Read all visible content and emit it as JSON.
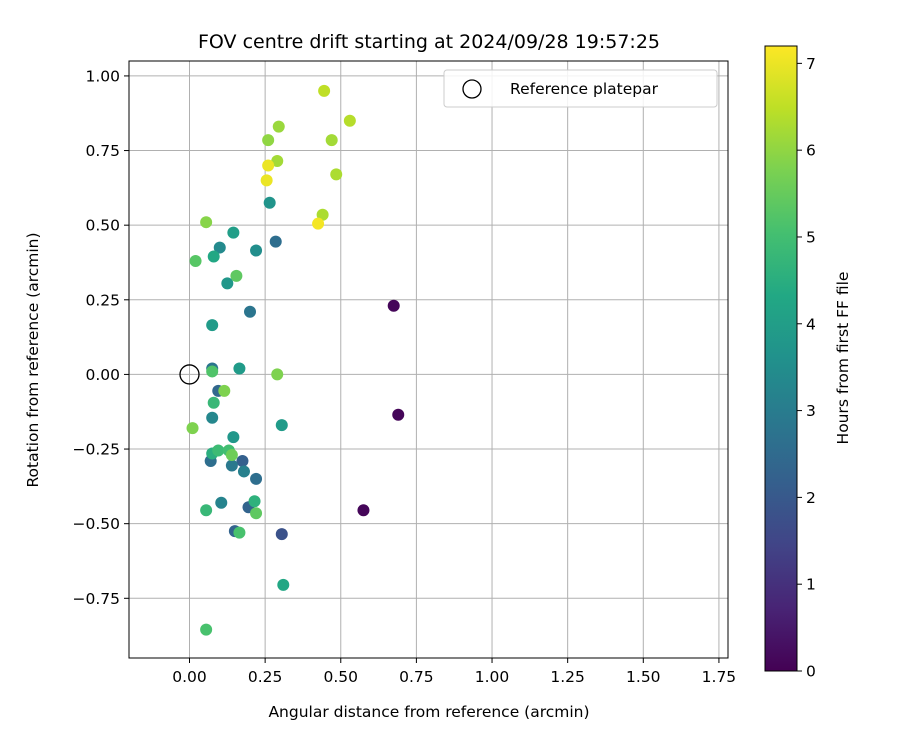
{
  "chart_data": {
    "type": "scatter",
    "title": "FOV centre drift starting at 2024/09/28 19:57:25",
    "xlabel": "Angular distance from reference (arcmin)",
    "ylabel": "Rotation from reference (arcmin)",
    "xlim": [
      -0.2,
      1.78
    ],
    "ylim": [
      -0.95,
      1.05
    ],
    "xticks": [
      0.0,
      0.25,
      0.5,
      0.75,
      1.0,
      1.25,
      1.5,
      1.75
    ],
    "xtick_labels": [
      "0.00",
      "0.25",
      "0.50",
      "0.75",
      "1.00",
      "1.25",
      "1.50",
      "1.75"
    ],
    "yticks": [
      -0.75,
      -0.5,
      -0.25,
      0.0,
      0.25,
      0.5,
      0.75,
      1.0
    ],
    "ytick_labels": [
      "−0.75",
      "−0.50",
      "−0.25",
      "0.00",
      "0.25",
      "0.50",
      "0.75",
      "1.00"
    ],
    "grid": true,
    "colormap": "viridis",
    "colorbar": {
      "label": "Hours from first FF file",
      "range": [
        0,
        7.2
      ],
      "ticks": [
        0,
        1,
        2,
        3,
        4,
        5,
        6,
        7
      ],
      "tick_labels": [
        "0",
        "1",
        "2",
        "3",
        "4",
        "5",
        "6",
        "7"
      ]
    },
    "legend": {
      "position": "top-right",
      "entries": [
        "Reference platepar"
      ]
    },
    "reference": {
      "x": 0.0,
      "y": 0.0,
      "name": "Reference platepar"
    },
    "series": [
      {
        "name": "",
        "points": [
          {
            "x": 0.675,
            "y": 0.23,
            "c": 0.1
          },
          {
            "x": 0.69,
            "y": -0.135,
            "c": 0.1
          },
          {
            "x": 0.575,
            "y": -0.455,
            "c": 0.1
          },
          {
            "x": 0.305,
            "y": -0.535,
            "c": 1.8
          },
          {
            "x": 0.15,
            "y": -0.525,
            "c": 2.3
          },
          {
            "x": 0.195,
            "y": -0.445,
            "c": 2.3
          },
          {
            "x": 0.175,
            "y": -0.29,
            "c": 2.2
          },
          {
            "x": 0.07,
            "y": -0.29,
            "c": 2.6
          },
          {
            "x": 0.095,
            "y": -0.055,
            "c": 2.4
          },
          {
            "x": 0.22,
            "y": -0.35,
            "c": 2.6
          },
          {
            "x": 0.285,
            "y": 0.445,
            "c": 2.6
          },
          {
            "x": 0.2,
            "y": 0.21,
            "c": 2.8
          },
          {
            "x": 0.075,
            "y": 0.02,
            "c": 2.8
          },
          {
            "x": 0.14,
            "y": -0.305,
            "c": 2.9
          },
          {
            "x": 0.18,
            "y": -0.325,
            "c": 3.1
          },
          {
            "x": 0.105,
            "y": -0.43,
            "c": 3.2
          },
          {
            "x": 0.075,
            "y": -0.145,
            "c": 3.3
          },
          {
            "x": 0.1,
            "y": 0.425,
            "c": 3.4
          },
          {
            "x": 0.22,
            "y": 0.415,
            "c": 3.5
          },
          {
            "x": 0.265,
            "y": 0.575,
            "c": 3.7
          },
          {
            "x": 0.125,
            "y": 0.305,
            "c": 3.8
          },
          {
            "x": 0.145,
            "y": -0.21,
            "c": 3.8
          },
          {
            "x": 0.075,
            "y": 0.165,
            "c": 3.9
          },
          {
            "x": 0.165,
            "y": 0.02,
            "c": 3.9
          },
          {
            "x": 0.305,
            "y": -0.17,
            "c": 3.9
          },
          {
            "x": 0.145,
            "y": 0.475,
            "c": 4.0
          },
          {
            "x": 0.08,
            "y": 0.395,
            "c": 4.3
          },
          {
            "x": 0.31,
            "y": -0.705,
            "c": 4.3
          },
          {
            "x": 0.075,
            "y": -0.265,
            "c": 4.5
          },
          {
            "x": 0.215,
            "y": -0.425,
            "c": 4.6
          },
          {
            "x": 0.08,
            "y": -0.095,
            "c": 4.8
          },
          {
            "x": 0.055,
            "y": -0.455,
            "c": 4.8
          },
          {
            "x": 0.095,
            "y": -0.255,
            "c": 4.9
          },
          {
            "x": 0.13,
            "y": -0.255,
            "c": 5.0
          },
          {
            "x": 0.055,
            "y": -0.855,
            "c": 5.1
          },
          {
            "x": 0.165,
            "y": -0.53,
            "c": 5.1
          },
          {
            "x": 0.075,
            "y": 0.01,
            "c": 5.2
          },
          {
            "x": 0.02,
            "y": 0.38,
            "c": 5.3
          },
          {
            "x": 0.155,
            "y": 0.33,
            "c": 5.4
          },
          {
            "x": 0.22,
            "y": -0.465,
            "c": 5.4
          },
          {
            "x": 0.14,
            "y": -0.27,
            "c": 5.6
          },
          {
            "x": 0.115,
            "y": -0.055,
            "c": 5.8
          },
          {
            "x": 0.29,
            "y": 0.0,
            "c": 5.8
          },
          {
            "x": 0.01,
            "y": -0.18,
            "c": 5.8
          },
          {
            "x": 0.055,
            "y": 0.51,
            "c": 5.9
          },
          {
            "x": 0.26,
            "y": 0.785,
            "c": 6.0
          },
          {
            "x": 0.295,
            "y": 0.83,
            "c": 6.1
          },
          {
            "x": 0.29,
            "y": 0.715,
            "c": 6.2
          },
          {
            "x": 0.47,
            "y": 0.785,
            "c": 6.2
          },
          {
            "x": 0.485,
            "y": 0.67,
            "c": 6.3
          },
          {
            "x": 0.44,
            "y": 0.535,
            "c": 6.3
          },
          {
            "x": 0.53,
            "y": 0.85,
            "c": 6.4
          },
          {
            "x": 0.445,
            "y": 0.95,
            "c": 6.5
          },
          {
            "x": 0.26,
            "y": 0.7,
            "c": 7.0
          },
          {
            "x": 0.255,
            "y": 0.65,
            "c": 7.0
          },
          {
            "x": 0.425,
            "y": 0.505,
            "c": 7.1
          }
        ]
      }
    ]
  }
}
